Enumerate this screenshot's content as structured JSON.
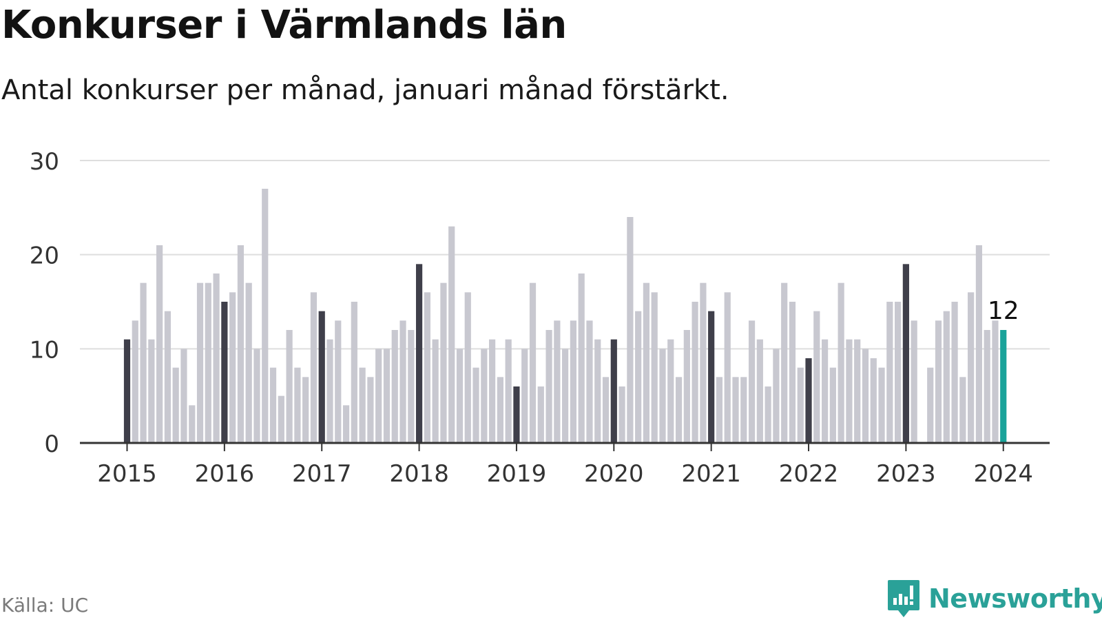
{
  "header": {
    "title": "Konkurser i Värmlands län",
    "subtitle": "Antal konkurser per månad, januari månad förstärkt."
  },
  "footer": {
    "source": "Källa: UC",
    "brand": "Newsworthy"
  },
  "colors": {
    "bar_default": "#c8c8d0",
    "bar_january": "#3f3f4a",
    "bar_latest": "#1aa39a",
    "grid": "#dedede",
    "axis": "#333333",
    "brand": "#2aa198"
  },
  "icons": {
    "brand_logo": "bar-chart-speech-bubble-icon"
  },
  "chart_data": {
    "type": "bar",
    "title": "Konkurser i Värmlands län",
    "subtitle": "Antal konkurser per månad, januari månad förstärkt.",
    "xlabel": "",
    "ylabel": "",
    "ylim": [
      0,
      30
    ],
    "yticks": [
      0,
      10,
      20,
      30
    ],
    "xticks": [
      "2015",
      "2016",
      "2017",
      "2018",
      "2019",
      "2020",
      "2021",
      "2022",
      "2023",
      "2024"
    ],
    "grid": true,
    "start_month": "2015-01",
    "highlight": "januari",
    "latest_label": "12",
    "series": [
      {
        "values": [
          11,
          13,
          17,
          11,
          21,
          14,
          8,
          10,
          4,
          17,
          17,
          18,
          15,
          16,
          21,
          17,
          10,
          27,
          8,
          5,
          12,
          8,
          7,
          16,
          14,
          11,
          13,
          4,
          15,
          8,
          7,
          10,
          10,
          12,
          13,
          12,
          19,
          16,
          11,
          17,
          23,
          10,
          16,
          8,
          10,
          11,
          7,
          11,
          6,
          10,
          17,
          6,
          12,
          13,
          10,
          13,
          18,
          13,
          11,
          7,
          11,
          6,
          24,
          14,
          17,
          16,
          10,
          11,
          7,
          12,
          15,
          17,
          14,
          7,
          16,
          7,
          7,
          13,
          11,
          6,
          10,
          17,
          15,
          8,
          9,
          14,
          11,
          8,
          17,
          11,
          11,
          10,
          9,
          8,
          15,
          15,
          19,
          13,
          0,
          8,
          13,
          14,
          15,
          7,
          16,
          21,
          12,
          13,
          12
        ]
      }
    ]
  }
}
